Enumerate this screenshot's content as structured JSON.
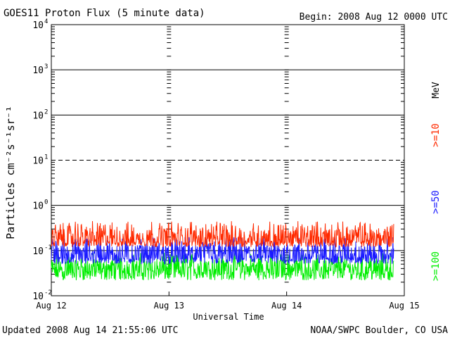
{
  "header": {
    "title": "GOES11 Proton Flux (5 minute data)",
    "begin": "Begin: 2008 Aug 12 0000 UTC"
  },
  "footer": {
    "updated": "Updated 2008 Aug 14 21:55:06 UTC",
    "source": "NOAA/SWPC Boulder, CO USA"
  },
  "colors": {
    "ge10": "#ff2a00",
    "ge50": "#1a1aff",
    "ge100": "#00ee00",
    "axis": "#000000"
  },
  "chart_data": {
    "type": "line",
    "title": "GOES11 Proton Flux (5 minute data)",
    "xlabel": "Universal Time",
    "ylabel": "Particles cm⁻²s⁻¹sr⁻¹",
    "yscale": "log",
    "ylim": [
      0.01,
      10000
    ],
    "y_ticks": [
      {
        "value": 10000,
        "base": "10",
        "exp": "4"
      },
      {
        "value": 1000,
        "base": "10",
        "exp": "3"
      },
      {
        "value": 100,
        "base": "10",
        "exp": "2"
      },
      {
        "value": 10,
        "base": "10",
        "exp": "1"
      },
      {
        "value": 1,
        "base": "10",
        "exp": "0"
      },
      {
        "value": 0.1,
        "base": "10",
        "exp": "-1"
      },
      {
        "value": 0.01,
        "base": "10",
        "exp": "-2"
      }
    ],
    "x_ticks": [
      "Aug 12",
      "Aug 13",
      "Aug 14",
      "Aug 15"
    ],
    "xlim_days": [
      0,
      3
    ],
    "data_end_day": 2.91,
    "unit_label": "MeV",
    "grid": "horizontal solid at decades, dashed at 10",
    "series": [
      {
        "name": ">=10",
        "color": "#ff2a00",
        "baseline": 0.16,
        "low": 0.12,
        "high": 0.45
      },
      {
        "name": ">=50",
        "color": "#1a1aff",
        "baseline": 0.07,
        "low": 0.05,
        "high": 0.2
      },
      {
        "name": ">=100",
        "color": "#00ee00",
        "baseline": 0.035,
        "low": 0.022,
        "high": 0.09
      }
    ]
  }
}
